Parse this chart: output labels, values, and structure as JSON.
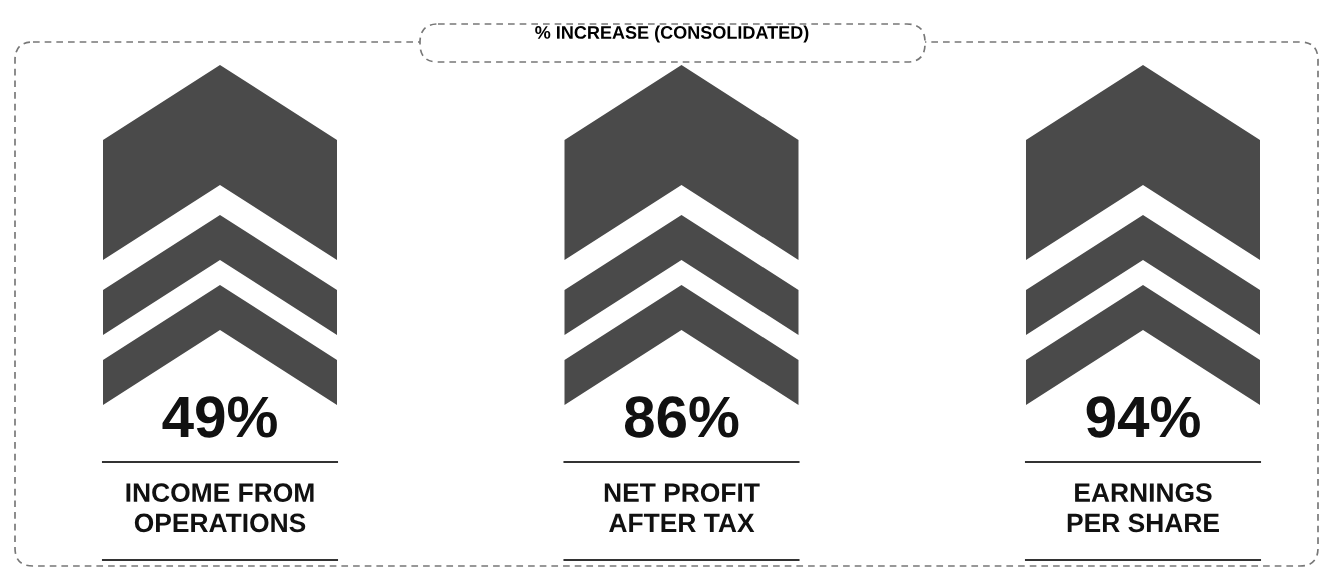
{
  "chart_data": {
    "type": "other",
    "title": "% INCREASE (CONSOLIDATED)",
    "categories": [
      "INCOME FROM\nOPERATIONS",
      "NET PROFIT\nAFTER TAX",
      "EARNINGS\nPER SHARE"
    ],
    "values": [
      49,
      86,
      94
    ],
    "value_labels": [
      "49%",
      "86%",
      "94%"
    ],
    "color": "#4a4a4a"
  }
}
